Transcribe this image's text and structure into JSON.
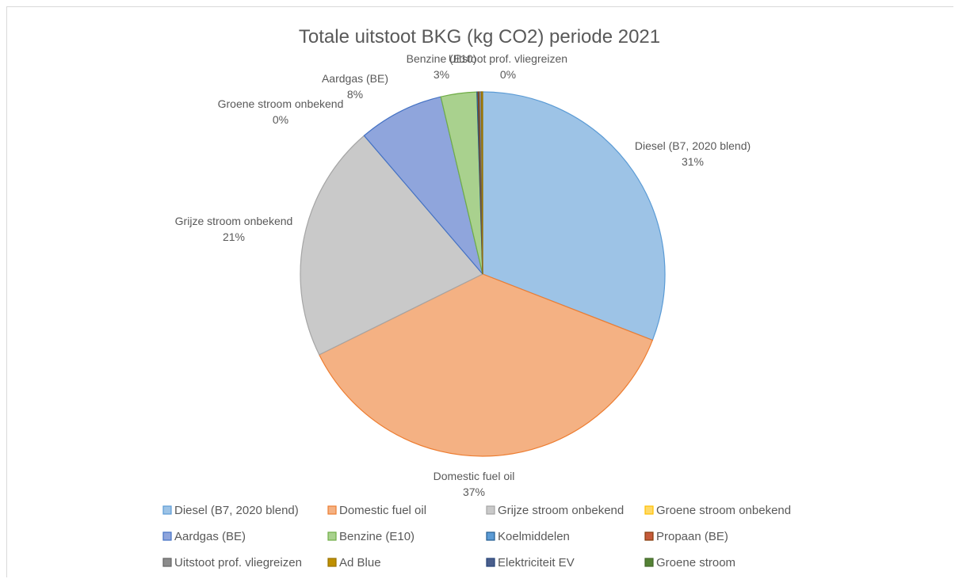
{
  "chart_data": {
    "type": "pie",
    "title": "Totale uitstoot BKG (kg CO2) periode 2021",
    "categories": [
      "Diesel (B7, 2020 blend)",
      "Domestic fuel oil",
      "Grijze stroom onbekend",
      "Groene stroom onbekend",
      "Aardgas (BE)",
      "Benzine (E10)",
      "Koelmiddelen",
      "Propaan (BE)",
      "Uitstoot prof. vliegreizen",
      "Ad Blue",
      "Elektriciteit EV",
      "Groene stroom"
    ],
    "values": [
      31,
      37,
      21,
      0,
      8,
      3,
      0,
      0,
      0,
      0,
      0,
      0
    ],
    "slice_values_precise": [
      31.0,
      36.9,
      21.1,
      0.0,
      7.6,
      3.2,
      0.1,
      0.1,
      0.2,
      0.1,
      0.0,
      0.0
    ],
    "data_labels": [
      {
        "name": "Diesel (B7, 2020 blend)",
        "pct": "31%"
      },
      {
        "name": "Domestic fuel oil",
        "pct": "37%"
      },
      {
        "name": "Grijze stroom onbekend",
        "pct": "21%"
      },
      {
        "name": "Groene stroom onbekend",
        "pct": "0%"
      },
      {
        "name": "Aardgas (BE)",
        "pct": "8%"
      },
      {
        "name": "Benzine (E10)",
        "pct": "3%"
      },
      {
        "name": "Uitstoot prof. vliegreizen",
        "pct": "0%"
      }
    ],
    "colors": [
      "#9dc3e6",
      "#f4b183",
      "#c9c9c9",
      "#ffd966",
      "#8fa5dc",
      "#a9d18e",
      "#5b9bd5",
      "#c55a3a",
      "#8c8c8c",
      "#bf9000",
      "#4a5e8c",
      "#548235"
    ],
    "borders": [
      "#5b9bd5",
      "#ed7d31",
      "#a5a5a5",
      "#ffc000",
      "#4472c4",
      "#70ad47",
      "#255e91",
      "#843c0c",
      "#636363",
      "#997300",
      "#264478",
      "#43682b"
    ],
    "legend": {
      "position": "bottom",
      "columns": 4
    }
  }
}
